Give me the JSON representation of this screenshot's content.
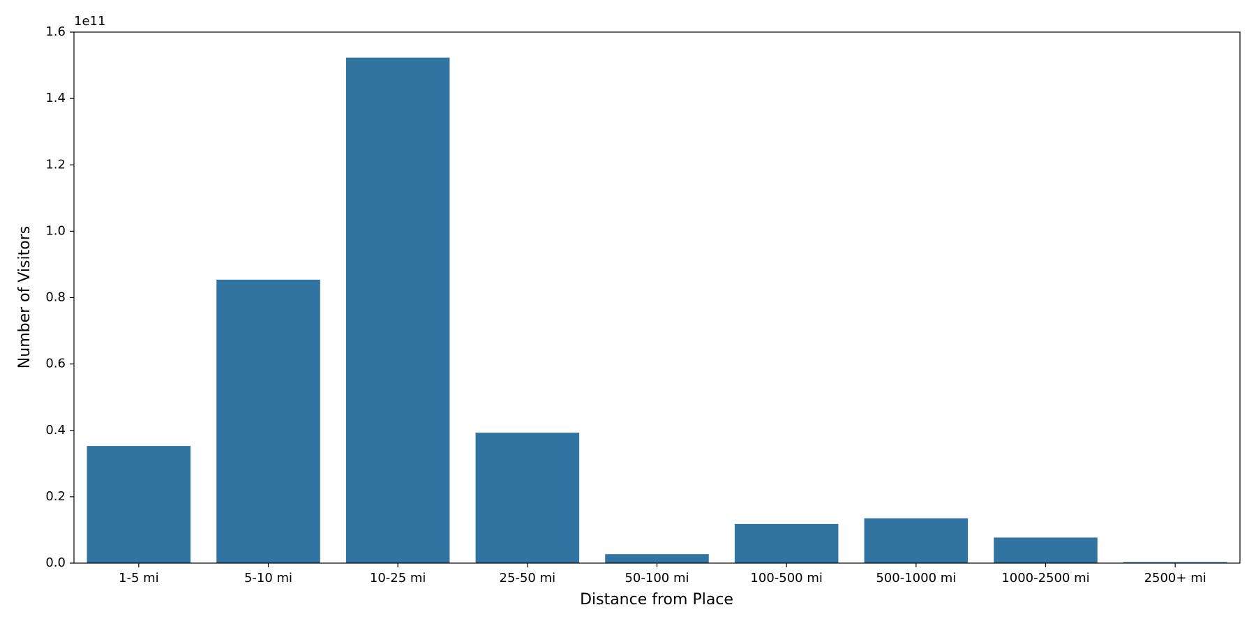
{
  "chart_data": {
    "type": "bar",
    "x_label": "Distance from Place",
    "y_label": "Number of Visitors",
    "offset_text": "1e11",
    "categories": [
      "1-5 mi",
      "5-10 mi",
      "10-25 mi",
      "25-50 mi",
      "50-100 mi",
      "100-500 mi",
      "500-1000 mi",
      "1000-2500 mi",
      "2500+ mi"
    ],
    "values": [
      0.353,
      0.854,
      1.523,
      0.393,
      0.027,
      0.118,
      0.135,
      0.077,
      0.003
    ],
    "color": "#3274a1",
    "ylim": [
      0,
      1.6
    ],
    "yticks": [
      {
        "value": 0,
        "label": "0.0"
      },
      0.2,
      0.4,
      0.6,
      0.8,
      {
        "value": 1,
        "label": "1.0"
      },
      1.2,
      1.4,
      1.6
    ],
    "grid": false
  }
}
